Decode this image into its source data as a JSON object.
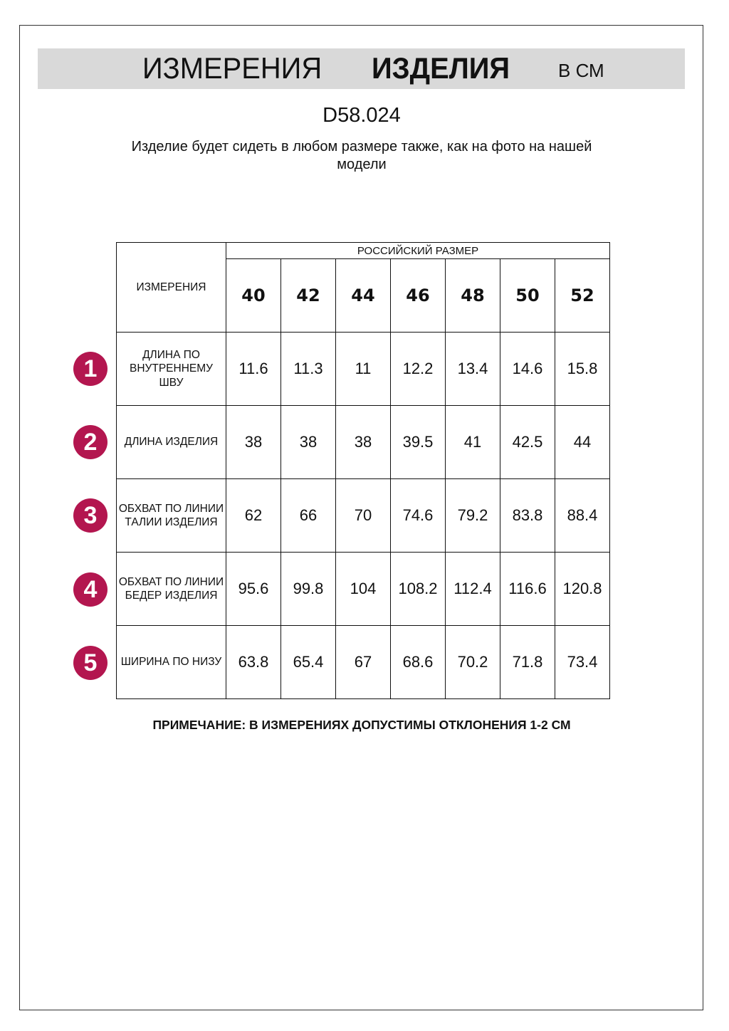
{
  "header": {
    "title_regular": "ИЗМЕРЕНИЯ",
    "title_bold": "ИЗДЕЛИЯ",
    "unit": "В СМ",
    "band_color": "#d9d9d9"
  },
  "product_code": "D58.024",
  "subtitle": "Изделие будет сидеть в любом размере также, как на фото на нашей модели",
  "table": {
    "measure_header": "ИЗМЕРЕНИЯ",
    "size_group_header": "РОССИЙСКИЙ РАЗМЕР",
    "sizes": [
      "40",
      "42",
      "44",
      "46",
      "48",
      "50",
      "52"
    ],
    "rows": [
      {
        "num": "1",
        "label": "ДЛИНА ПО ВНУТРЕННЕМУ ШВУ",
        "values": [
          "11.6",
          "11.3",
          "11",
          "12.2",
          "13.4",
          "14.6",
          "15.8"
        ]
      },
      {
        "num": "2",
        "label": "ДЛИНА ИЗДЕЛИЯ",
        "values": [
          "38",
          "38",
          "38",
          "39.5",
          "41",
          "42.5",
          "44"
        ]
      },
      {
        "num": "3",
        "label": "ОБХВАТ ПО ЛИНИИ ТАЛИИ ИЗДЕЛИЯ",
        "values": [
          "62",
          "66",
          "70",
          "74.6",
          "79.2",
          "83.8",
          "88.4"
        ]
      },
      {
        "num": "4",
        "label": "ОБХВАТ ПО ЛИНИИ БЕДЕР ИЗДЕЛИЯ",
        "values": [
          "95.6",
          "99.8",
          "104",
          "108.2",
          "112.4",
          "116.6",
          "120.8"
        ]
      },
      {
        "num": "5",
        "label": "ШИРИНА ПО НИЗУ",
        "values": [
          "63.8",
          "65.4",
          "67",
          "68.6",
          "70.2",
          "71.8",
          "73.4"
        ]
      }
    ],
    "badge_color": "#b3164f"
  },
  "note": "ПРИМЕЧАНИЕ: В ИЗМЕРЕНИЯХ ДОПУСТИМЫ ОТКЛОНЕНИЯ 1-2 СМ"
}
